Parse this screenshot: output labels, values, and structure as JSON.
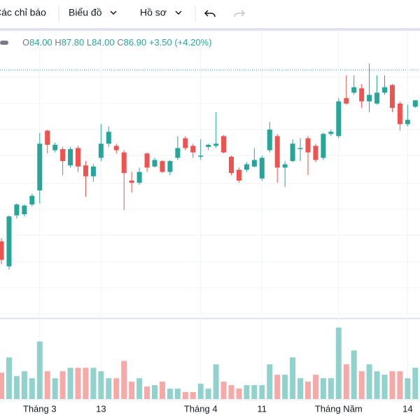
{
  "toolbar": {
    "items": [
      "Các chỉ báo",
      "Biểu đồ",
      "Hồ sơ"
    ]
  },
  "legend": {
    "o_label": "O",
    "open": "84.00",
    "h_label": "H",
    "high": "87.80",
    "l_label": "L",
    "low": "84.00",
    "c_label": "C",
    "close": "86.90",
    "change": "+3.50 (+4.20%)"
  },
  "chart_data": {
    "type": "candlestick",
    "categories": [
      null,
      null,
      null,
      null,
      null,
      "Tháng 3",
      null,
      null,
      null,
      null,
      null,
      null,
      null,
      "13",
      null,
      null,
      null,
      null,
      null,
      null,
      null,
      null,
      null,
      null,
      null,
      null,
      "Tháng 4",
      null,
      null,
      null,
      null,
      null,
      null,
      null,
      "11",
      null,
      null,
      null,
      null,
      null,
      null,
      null,
      null,
      null,
      "Tháng Năm",
      null,
      null,
      null,
      null,
      null,
      null,
      null,
      null,
      "14",
      null
    ],
    "open": [
      71.1,
      68.8,
      73.5,
      73.6,
      74.5,
      75.8,
      81.3,
      79.5,
      79.6,
      78.1,
      79.7,
      78.1,
      77.1,
      78.8,
      80.1,
      79.9,
      79.3,
      76.7,
      76.5,
      79.2,
      78.0,
      78.5,
      77.5,
      78.8,
      80.6,
      79.9,
      78.9,
      79.8,
      79.9,
      80.8,
      78.9,
      77.7,
      77.7,
      78.0,
      76.9,
      79.5,
      80.8,
      77.9,
      78.5,
      79.6,
      80.6,
      79.9,
      78.8,
      81.0,
      80.8,
      84.3,
      84.8,
      85.2,
      84.0,
      83.8,
      84.8,
      85.5,
      83.8,
      81.9,
      83.5
    ],
    "high": [
      71.4,
      73.5,
      74.6,
      74.5,
      75.5,
      81.1,
      81.4,
      80.2,
      79.8,
      79.8,
      79.9,
      78.5,
      78.2,
      81.9,
      81.7,
      80.1,
      79.5,
      77.5,
      77.9,
      79.3,
      78.8,
      78.6,
      78.6,
      80.8,
      80.8,
      80.1,
      80.5,
      80.1,
      83.0,
      80.9,
      79.0,
      77.9,
      78.4,
      79.7,
      79.0,
      82.1,
      81.0,
      78.5,
      80.5,
      80.6,
      80.8,
      80.1,
      81.1,
      81.4,
      84.3,
      86.4,
      86.4,
      85.6,
      87.5,
      86.4,
      86.4,
      85.6,
      84.0,
      83.7,
      84.1
    ],
    "low": [
      69.0,
      68.5,
      73.2,
      73.4,
      74.3,
      74.6,
      79.2,
      79.3,
      77.2,
      77.9,
      77.5,
      75.2,
      76.6,
      78.5,
      79.8,
      79.2,
      74.0,
      75.6,
      76.3,
      77.5,
      77.9,
      77.4,
      77.2,
      78.6,
      79.5,
      78.8,
      78.6,
      79.5,
      79.7,
      79.2,
      77.2,
      76.5,
      77.5,
      77.9,
      76.7,
      79.3,
      76.5,
      76.1,
      78.4,
      78.5,
      77.2,
      78.4,
      78.6,
      80.8,
      80.6,
      83.7,
      84.6,
      83.4,
      83.0,
      83.7,
      84.6,
      83.0,
      81.3,
      81.7,
      83.4
    ],
    "close": [
      69.4,
      73.4,
      74.5,
      74.4,
      75.3,
      80.1,
      80.0,
      80.0,
      78.5,
      79.6,
      78.0,
      77.1,
      78.0,
      80.1,
      81.2,
      79.5,
      77.4,
      76.5,
      77.5,
      77.9,
      78.6,
      77.5,
      78.5,
      79.7,
      79.7,
      79.3,
      79.0,
      80.0,
      80.1,
      79.3,
      77.4,
      76.7,
      78.2,
      78.6,
      78.8,
      81.4,
      77.9,
      78.2,
      80.1,
      79.7,
      79.3,
      78.6,
      81.0,
      81.2,
      84.0,
      83.8,
      85.3,
      84.0,
      84.6,
      84.8,
      85.3,
      83.4,
      81.9,
      82.3,
      84.1
    ],
    "volume": [
      38,
      60,
      33,
      40,
      30,
      83,
      40,
      30,
      40,
      45,
      45,
      45,
      45,
      40,
      30,
      30,
      55,
      25,
      30,
      18,
      20,
      25,
      15,
      15,
      10,
      10,
      22,
      15,
      50,
      25,
      20,
      15,
      20,
      20,
      20,
      50,
      35,
      35,
      60,
      30,
      25,
      35,
      30,
      30,
      103,
      50,
      70,
      40,
      50,
      40,
      35,
      40,
      40,
      30,
      45
    ],
    "ylim": [
      64.0,
      88.5
    ],
    "volume_lim": [
      0,
      110
    ],
    "up_color": "#26a69a",
    "down_color": "#ef5350"
  }
}
